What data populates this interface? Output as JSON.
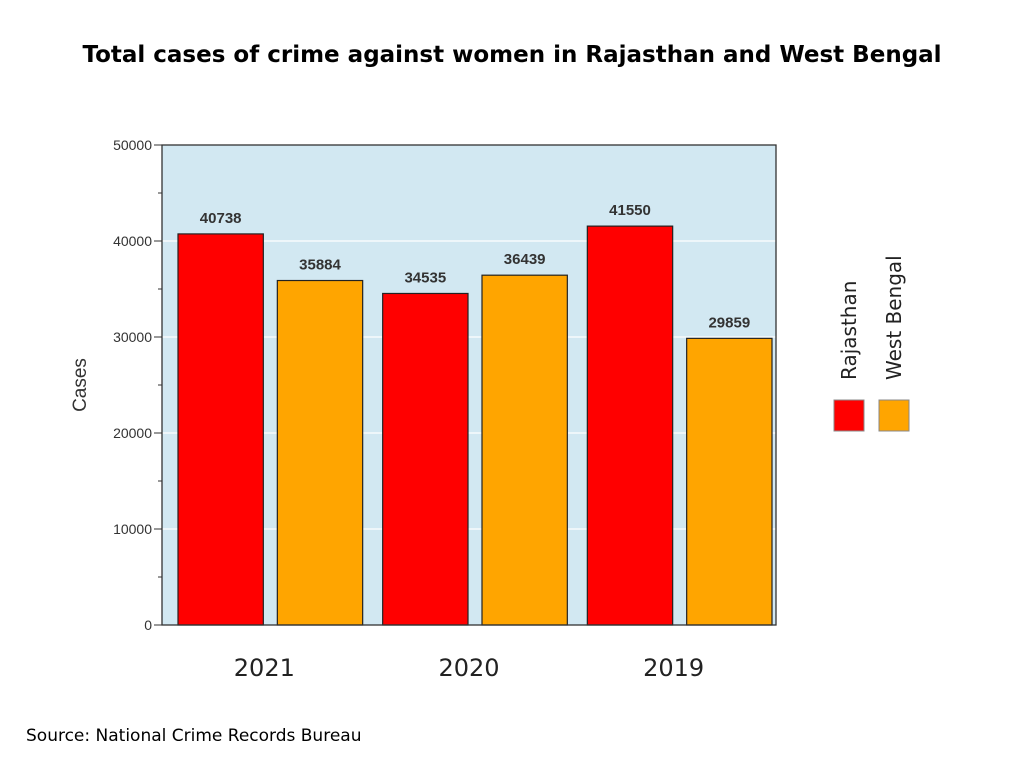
{
  "title": "Total cases of crime against women in Rajasthan and West Bengal",
  "source": "Source: National Crime Records Bureau",
  "chart_data": {
    "type": "bar",
    "title": "Total cases of crime against women in Rajasthan and West Bengal",
    "xlabel": "",
    "ylabel": "Cases",
    "categories": [
      "2021",
      "2020",
      "2019"
    ],
    "series": [
      {
        "name": "Rajasthan",
        "values": [
          40738,
          34535,
          41550
        ],
        "color": "#ff0000"
      },
      {
        "name": "West Bengal",
        "values": [
          35884,
          36439,
          29859
        ],
        "color": "#ffa500"
      }
    ],
    "ylim": [
      0,
      50000
    ],
    "yticks": [
      "0",
      "10000",
      "20000",
      "30000",
      "40000",
      "50000"
    ],
    "grid": true,
    "plot_background": "#d2e8f2",
    "legend_position": "right"
  }
}
